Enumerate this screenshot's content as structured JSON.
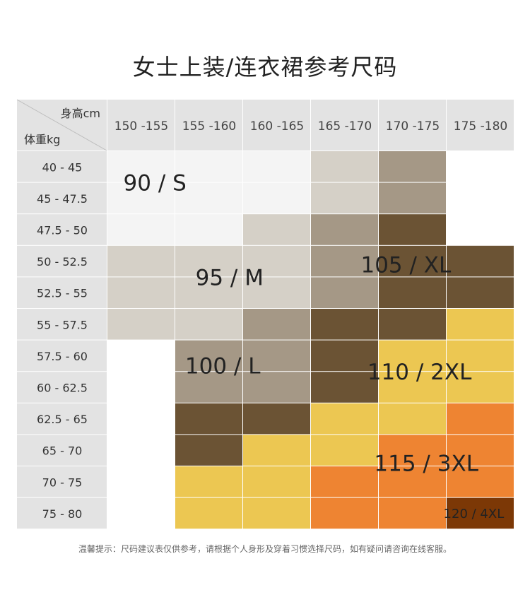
{
  "title": "女士上装/连衣裙参考尺码",
  "corner": {
    "height_label": "身高cm",
    "weight_label": "体重kg"
  },
  "chart_data": {
    "type": "heatmap",
    "columns": [
      "150 -155",
      "155 -160",
      "160 -165",
      "165 -170",
      "170 -175",
      "175 -180"
    ],
    "rows": [
      "40 - 45",
      "45 - 47.5",
      "47.5 - 50",
      "50 - 52.5",
      "52.5 - 55",
      "55 - 57.5",
      "57.5 - 60",
      "60 - 62.5",
      "62.5 - 65",
      "65 - 70",
      "70 - 75",
      "75 - 80"
    ],
    "sizes": [
      "90 / S",
      "95 / M",
      "100 / L",
      "105 / XL",
      "110 / 2XL",
      "115 / 3XL",
      "120 / 4XL"
    ],
    "size_colors": {
      "90 / S": "#f4f4f4",
      "95 / M": "#d5d0c7",
      "100 / L": "#a59886",
      "105 / XL": "#6b5334",
      "110 / 2XL": "#ecc752",
      "115 / 3XL": "#ee8432",
      "120 / 4XL": "#7c3806"
    },
    "cells": [
      [
        "90 / S",
        "90 / S",
        "90 / S",
        "95 / M",
        "100 / L",
        null
      ],
      [
        "90 / S",
        "90 / S",
        "90 / S",
        "95 / M",
        "100 / L",
        null
      ],
      [
        "90 / S",
        "90 / S",
        "95 / M",
        "100 / L",
        "105 / XL",
        null
      ],
      [
        "95 / M",
        "95 / M",
        "95 / M",
        "100 / L",
        "105 / XL",
        "105 / XL"
      ],
      [
        "95 / M",
        "95 / M",
        "95 / M",
        "100 / L",
        "105 / XL",
        "105 / XL"
      ],
      [
        "95 / M",
        "95 / M",
        "100 / L",
        "105 / XL",
        "105 / XL",
        "110 / 2XL"
      ],
      [
        null,
        "100 / L",
        "100 / L",
        "105 / XL",
        "110 / 2XL",
        "110 / 2XL"
      ],
      [
        null,
        "100 / L",
        "100 / L",
        "105 / XL",
        "110 / 2XL",
        "110 / 2XL"
      ],
      [
        null,
        "105 / XL",
        "105 / XL",
        "110 / 2XL",
        "110 / 2XL",
        "115 / 3XL"
      ],
      [
        null,
        "105 / XL",
        "110 / 2XL",
        "110 / 2XL",
        "115 / 3XL",
        "115 / 3XL"
      ],
      [
        null,
        "110 / 2XL",
        "110 / 2XL",
        "115 / 3XL",
        "115 / 3XL",
        "115 / 3XL"
      ],
      [
        null,
        "110 / 2XL",
        "110 / 2XL",
        "115 / 3XL",
        "115 / 3XL",
        "120 / 4XL"
      ]
    ],
    "labels": [
      {
        "text": "90 / S",
        "row": 1,
        "col": 0.7
      },
      {
        "text": "95 / M",
        "row": 4,
        "col": 1.8
      },
      {
        "text": "105 / XL",
        "row": 3.6,
        "col": 4.4
      },
      {
        "text": "100 / L",
        "row": 6.8,
        "col": 1.7
      },
      {
        "text": "110 / 2XL",
        "row": 7,
        "col": 4.6
      },
      {
        "text": "115 / 3XL",
        "row": 9.9,
        "col": 4.7
      },
      {
        "text": "120 / 4XL",
        "row": 11.5,
        "col": 5.4
      }
    ]
  },
  "note": "温馨提示：尺码建议表仅供参考，请根据个人身形及穿着习惯选择尺码，如有疑问请咨询在线客服。"
}
